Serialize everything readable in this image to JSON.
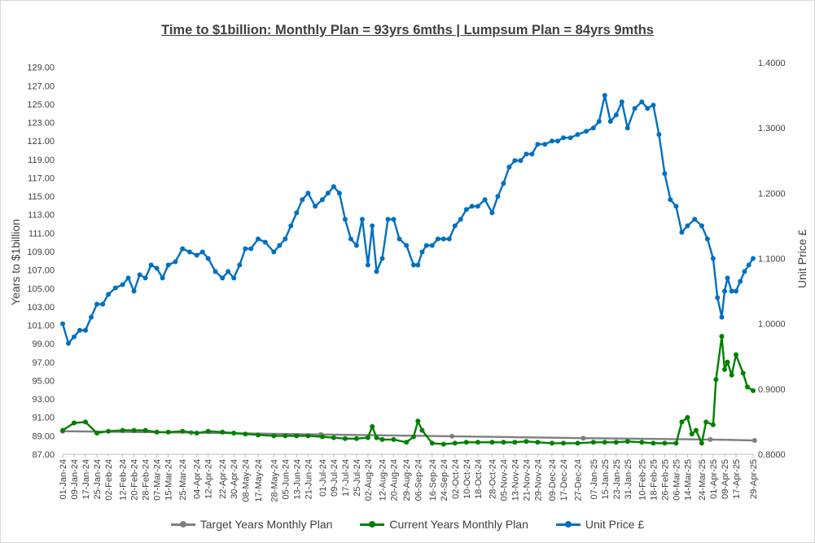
{
  "chart_data": {
    "type": "line",
    "title": "Time to $1billion: Monthly Plan = 93yrs 6mths | Lumpsum Plan = 84yrs 9mths",
    "ylabel": "Years to $1billion",
    "y2label": "Unit Price £",
    "ylim": [
      87,
      129.5
    ],
    "y2lim": [
      0.8,
      1.4
    ],
    "yticks": [
      "87.00",
      "89.00",
      "91.00",
      "93.00",
      "95.00",
      "97.00",
      "99.00",
      "101.00",
      "103.00",
      "105.00",
      "107.00",
      "109.00",
      "111.00",
      "113.00",
      "115.00",
      "117.00",
      "119.00",
      "121.00",
      "123.00",
      "125.00",
      "127.00",
      "129.00"
    ],
    "y2ticks": [
      "0.8000",
      "0.9000",
      "1.0000",
      "1.1000",
      "1.2000",
      "1.3000",
      "1.4000"
    ],
    "xticks": [
      "01-Jan-24",
      "09-Jan-24",
      "17-Jan-24",
      "25-Jan-24",
      "02-Feb-24",
      "12-Feb-24",
      "20-Feb-24",
      "28-Feb-24",
      "07-Mar-24",
      "15-Mar-24",
      "25-Mar-24",
      "04-Apr-24",
      "12-Apr-24",
      "22-Apr-24",
      "30-Apr-24",
      "08-May-24",
      "17-May-24",
      "28-May-24",
      "05-Jun-24",
      "13-Jun-24",
      "21-Jun-24",
      "01-Jul-24",
      "09-Jul-24",
      "17-Jul-24",
      "25-Jul-24",
      "02-Aug-24",
      "12-Aug-24",
      "20-Aug-24",
      "29-Aug-24",
      "06-Sep-24",
      "16-Sep-24",
      "24-Sep-24",
      "02-Oct-24",
      "10-Oct-24",
      "18-Oct-24",
      "28-Oct-24",
      "05-Nov-24",
      "13-Nov-24",
      "21-Nov-24",
      "29-Nov-24",
      "09-Dec-24",
      "17-Dec-24",
      "27-Dec-24",
      "07-Jan-25",
      "15-Jan-25",
      "23-Jan-25",
      "31-Jan-25",
      "10-Feb-25",
      "18-Feb-25",
      "26-Feb-25",
      "06-Mar-25",
      "14-Mar-25",
      "24-Mar-25",
      "01-Apr-25",
      "09-Apr-25",
      "17-Apr-25",
      "29-Apr-25"
    ],
    "legend_placement": "bottom",
    "series": [
      {
        "name": "Target Years Monthly Plan",
        "axis": "left",
        "color": "#7f7f7f",
        "x": [
          "01-Jan-24",
          "31-Mar-24",
          "30-Jun-24",
          "30-Sep-24",
          "31-Dec-24",
          "30-Mar-25",
          "30-Apr-25"
        ],
        "y": [
          89.5,
          89.35,
          89.15,
          88.95,
          88.75,
          88.6,
          88.5
        ]
      },
      {
        "name": "Current Years Monthly Plan",
        "axis": "left",
        "color": "#008000",
        "x": [
          "01-Jan-24",
          "09-Jan-24",
          "17-Jan-24",
          "25-Jan-24",
          "02-Feb-24",
          "12-Feb-24",
          "20-Feb-24",
          "28-Feb-24",
          "07-Mar-24",
          "15-Mar-24",
          "25-Mar-24",
          "04-Apr-24",
          "12-Apr-24",
          "22-Apr-24",
          "30-Apr-24",
          "08-May-24",
          "17-May-24",
          "28-May-24",
          "05-Jun-24",
          "13-Jun-24",
          "21-Jun-24",
          "01-Jul-24",
          "09-Jul-24",
          "17-Jul-24",
          "25-Jul-24",
          "02-Aug-24",
          "05-Aug-24",
          "08-Aug-24",
          "12-Aug-24",
          "20-Aug-24",
          "29-Aug-24",
          "03-Sep-24",
          "06-Sep-24",
          "09-Sep-24",
          "16-Sep-24",
          "24-Sep-24",
          "02-Oct-24",
          "10-Oct-24",
          "18-Oct-24",
          "28-Oct-24",
          "05-Nov-24",
          "13-Nov-24",
          "21-Nov-24",
          "29-Nov-24",
          "09-Dec-24",
          "17-Dec-24",
          "27-Dec-24",
          "07-Jan-25",
          "15-Jan-25",
          "23-Jan-25",
          "31-Jan-25",
          "10-Feb-25",
          "18-Feb-25",
          "26-Feb-25",
          "06-Mar-25",
          "10-Mar-25",
          "14-Mar-25",
          "17-Mar-25",
          "20-Mar-25",
          "24-Mar-25",
          "27-Mar-25",
          "01-Apr-25",
          "03-Apr-25",
          "07-Apr-25",
          "09-Apr-25",
          "11-Apr-25",
          "14-Apr-25",
          "17-Apr-25",
          "22-Apr-25",
          "25-Apr-25",
          "29-Apr-25"
        ],
        "y": [
          89.6,
          90.4,
          90.5,
          89.3,
          89.5,
          89.6,
          89.6,
          89.6,
          89.4,
          89.4,
          89.5,
          89.3,
          89.5,
          89.4,
          89.3,
          89.2,
          89.1,
          89.0,
          89.0,
          89.0,
          89.0,
          88.9,
          88.8,
          88.7,
          88.7,
          88.8,
          90.0,
          88.8,
          88.6,
          88.6,
          88.3,
          88.9,
          90.6,
          89.6,
          88.2,
          88.1,
          88.2,
          88.3,
          88.3,
          88.3,
          88.3,
          88.3,
          88.4,
          88.3,
          88.2,
          88.2,
          88.2,
          88.3,
          88.3,
          88.3,
          88.4,
          88.3,
          88.2,
          88.2,
          88.2,
          90.5,
          91.0,
          89.2,
          89.6,
          88.2,
          90.5,
          90.2,
          95.1,
          99.8,
          96.2,
          97.0,
          95.6,
          97.8,
          95.8,
          94.3,
          93.9
        ]
      },
      {
        "name": "Unit Price £",
        "axis": "right",
        "color": "#0070c0",
        "x": [
          "01-Jan-24",
          "05-Jan-24",
          "09-Jan-24",
          "13-Jan-24",
          "17-Jan-24",
          "21-Jan-24",
          "25-Jan-24",
          "29-Jan-24",
          "02-Feb-24",
          "07-Feb-24",
          "12-Feb-24",
          "16-Feb-24",
          "20-Feb-24",
          "24-Feb-24",
          "28-Feb-24",
          "03-Mar-24",
          "07-Mar-24",
          "11-Mar-24",
          "15-Mar-24",
          "20-Mar-24",
          "25-Mar-24",
          "30-Mar-24",
          "04-Apr-24",
          "08-Apr-24",
          "12-Apr-24",
          "17-Apr-24",
          "22-Apr-24",
          "26-Apr-24",
          "30-Apr-24",
          "04-May-24",
          "08-May-24",
          "12-May-24",
          "17-May-24",
          "22-May-24",
          "28-May-24",
          "01-Jun-24",
          "05-Jun-24",
          "09-Jun-24",
          "13-Jun-24",
          "17-Jun-24",
          "21-Jun-24",
          "26-Jun-24",
          "01-Jul-24",
          "05-Jul-24",
          "09-Jul-24",
          "13-Jul-24",
          "17-Jul-24",
          "21-Jul-24",
          "25-Jul-24",
          "29-Jul-24",
          "02-Aug-24",
          "05-Aug-24",
          "08-Aug-24",
          "12-Aug-24",
          "16-Aug-24",
          "20-Aug-24",
          "24-Aug-24",
          "29-Aug-24",
          "03-Sep-24",
          "06-Sep-24",
          "09-Sep-24",
          "12-Sep-24",
          "16-Sep-24",
          "20-Sep-24",
          "24-Sep-24",
          "28-Sep-24",
          "02-Oct-24",
          "06-Oct-24",
          "10-Oct-24",
          "14-Oct-24",
          "18-Oct-24",
          "23-Oct-24",
          "28-Oct-24",
          "01-Nov-24",
          "05-Nov-24",
          "09-Nov-24",
          "13-Nov-24",
          "17-Nov-24",
          "21-Nov-24",
          "25-Nov-24",
          "29-Nov-24",
          "04-Dec-24",
          "09-Dec-24",
          "13-Dec-24",
          "17-Dec-24",
          "22-Dec-24",
          "27-Dec-24",
          "02-Jan-25",
          "07-Jan-25",
          "11-Jan-25",
          "15-Jan-25",
          "19-Jan-25",
          "23-Jan-25",
          "27-Jan-25",
          "31-Jan-25",
          "05-Feb-25",
          "10-Feb-25",
          "14-Feb-25",
          "18-Feb-25",
          "22-Feb-25",
          "26-Feb-25",
          "02-Mar-25",
          "06-Mar-25",
          "10-Mar-25",
          "14-Mar-25",
          "19-Mar-25",
          "24-Mar-25",
          "28-Mar-25",
          "01-Apr-25",
          "04-Apr-25",
          "07-Apr-25",
          "09-Apr-25",
          "11-Apr-25",
          "14-Apr-25",
          "17-Apr-25",
          "20-Apr-25",
          "23-Apr-25",
          "26-Apr-25",
          "29-Apr-25"
        ],
        "y": [
          1.0,
          0.97,
          0.98,
          0.99,
          0.99,
          1.01,
          1.03,
          1.03,
          1.045,
          1.055,
          1.06,
          1.07,
          1.05,
          1.075,
          1.07,
          1.09,
          1.085,
          1.07,
          1.09,
          1.095,
          1.115,
          1.11,
          1.105,
          1.11,
          1.1,
          1.08,
          1.07,
          1.08,
          1.07,
          1.09,
          1.115,
          1.115,
          1.13,
          1.125,
          1.11,
          1.12,
          1.13,
          1.15,
          1.17,
          1.19,
          1.2,
          1.18,
          1.19,
          1.2,
          1.21,
          1.2,
          1.16,
          1.13,
          1.12,
          1.16,
          1.09,
          1.15,
          1.08,
          1.1,
          1.16,
          1.16,
          1.13,
          1.12,
          1.09,
          1.09,
          1.11,
          1.12,
          1.12,
          1.13,
          1.13,
          1.13,
          1.15,
          1.16,
          1.175,
          1.18,
          1.18,
          1.19,
          1.17,
          1.195,
          1.215,
          1.24,
          1.25,
          1.25,
          1.26,
          1.26,
          1.275,
          1.275,
          1.28,
          1.28,
          1.285,
          1.285,
          1.29,
          1.295,
          1.3,
          1.31,
          1.35,
          1.31,
          1.32,
          1.34,
          1.3,
          1.33,
          1.34,
          1.33,
          1.335,
          1.29,
          1.23,
          1.19,
          1.18,
          1.14,
          1.15,
          1.16,
          1.15,
          1.13,
          1.1,
          1.04,
          1.01,
          1.05,
          1.07,
          1.05,
          1.05,
          1.065,
          1.08,
          1.09,
          1.1
        ]
      }
    ]
  }
}
